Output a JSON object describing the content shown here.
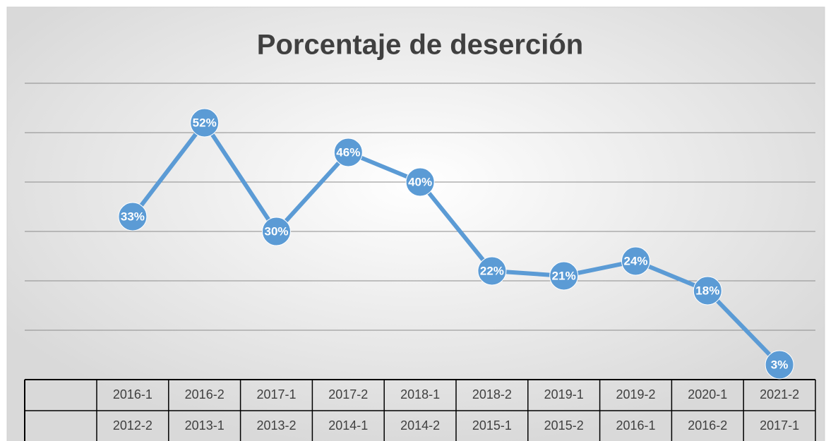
{
  "chart_data": {
    "type": "line",
    "title": "Porcentaje de deserción",
    "categories": [
      [
        "2016-1",
        "2012-2"
      ],
      [
        "2016-2",
        "2013-1"
      ],
      [
        "2017-1",
        "2013-2"
      ],
      [
        "2017-2",
        "2014-1"
      ],
      [
        "2018-1",
        "2014-2"
      ],
      [
        "2018-2",
        "2015-1"
      ],
      [
        "2019-1",
        "2015-2"
      ],
      [
        "2019-2",
        "2016-1"
      ],
      [
        "2020-1",
        "2016-2"
      ],
      [
        "2021-2",
        "2017-1"
      ]
    ],
    "series": [
      {
        "color": "#5b9bd5",
        "values": [
          33,
          52,
          30,
          46,
          40,
          22,
          21,
          24,
          18,
          3
        ],
        "value_labels": [
          "33%",
          "52%",
          "30%",
          "46%",
          "40%",
          "22%",
          "21%",
          "24%",
          "18%",
          "3%"
        ]
      }
    ],
    "ylim": [
      0,
      60
    ],
    "yticks": [
      0,
      10,
      20,
      30,
      40,
      50,
      60
    ],
    "grid": true
  }
}
